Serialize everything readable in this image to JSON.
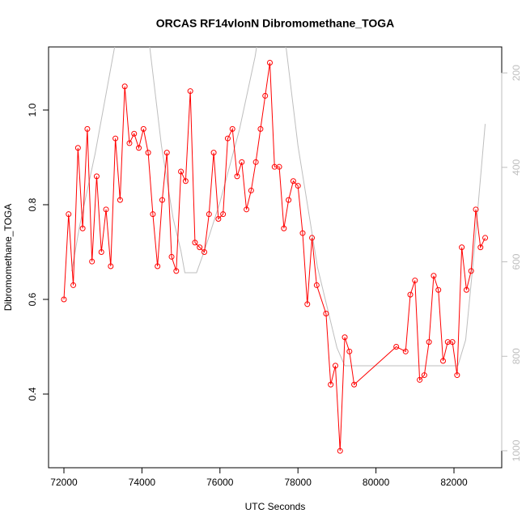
{
  "chart_data": {
    "type": "line",
    "title": "ORCAS RF14vlonN Dibromomethane_TOGA",
    "x_label": "UTC Seconds",
    "y_label": "Dibromomethane_TOGA",
    "xlim": [
      71606,
      83224
    ],
    "ylim": [
      0.2444,
      1.1333
    ],
    "y2lim": [
      1036,
      145
    ],
    "xticks": [
      72000,
      74000,
      76000,
      78000,
      80000,
      82000
    ],
    "yticks": [
      0.4,
      0.6,
      0.8,
      {
        "value": 1,
        "label": "1.0"
      }
    ],
    "y2ticks": [
      200,
      400,
      600,
      800,
      1000
    ],
    "series": [
      {
        "color": "#ff0000",
        "markers": true,
        "x": [
          72000,
          72120,
          72240,
          72360,
          72480,
          72600,
          72720,
          72840,
          72960,
          73080,
          73200,
          73320,
          73440,
          73560,
          73680,
          73800,
          73920,
          74040,
          74160,
          74280,
          74400,
          74520,
          74640,
          74760,
          74880,
          75000,
          75120,
          75240,
          75360,
          75480,
          75600,
          75720,
          75840,
          75960,
          76080,
          76200,
          76320,
          76440,
          76560,
          76680,
          76800,
          76920,
          77040,
          77160,
          77280,
          77400,
          77520,
          77640,
          77760,
          77880,
          78000,
          78120,
          78240,
          78360,
          78480,
          78720,
          78840,
          78960,
          79080,
          79200,
          79320,
          79440,
          80520,
          80760,
          80880,
          81000,
          81120,
          81240,
          81360,
          81480,
          81600,
          81720,
          81840,
          81960,
          82080,
          82200,
          82320,
          82440,
          82560,
          82680,
          82800
        ],
        "values": [
          0.6,
          0.78,
          0.63,
          0.92,
          0.75,
          0.96,
          0.68,
          0.86,
          0.7,
          0.79,
          0.67,
          0.94,
          0.81,
          1.05,
          0.93,
          0.95,
          0.92,
          0.96,
          0.91,
          0.78,
          0.67,
          0.81,
          0.91,
          0.69,
          0.66,
          0.87,
          0.85,
          1.04,
          0.72,
          0.71,
          0.7,
          0.78,
          0.91,
          0.77,
          0.78,
          0.94,
          0.96,
          0.86,
          0.89,
          0.79,
          0.83,
          0.89,
          0.96,
          1.03,
          1.1,
          0.88,
          0.88,
          0.75,
          0.81,
          0.85,
          0.84,
          0.74,
          0.59,
          0.73,
          0.63,
          0.57,
          0.42,
          0.46,
          0.28,
          0.52,
          0.49,
          0.42,
          0.5,
          0.49,
          0.61,
          0.64,
          0.43,
          0.44,
          0.51,
          0.65,
          0.62,
          0.47,
          0.51,
          0.51,
          0.44,
          0.71,
          0.62,
          0.66,
          0.79,
          0.71,
          0.73
        ]
      },
      {
        "color": "#bebebe",
        "axis": "y2",
        "markers": false,
        "x": [
          72200,
          72400,
          72800,
          73300,
          73500,
          74100,
          74200,
          74500,
          74800,
          75000,
          75100,
          75400,
          75600,
          76000,
          76500,
          76900,
          77000,
          77600,
          77700,
          78000,
          78500,
          79000,
          79200,
          82100,
          82300,
          82500,
          82800
        ],
        "values": [
          620,
          525,
          371,
          145,
          100,
          100,
          145,
          354,
          508,
          577,
          623,
          623,
          577,
          474,
          320,
          166,
          114,
          114,
          149,
          354,
          611,
          782,
          820,
          820,
          765,
          594,
          308
        ]
      }
    ]
  }
}
